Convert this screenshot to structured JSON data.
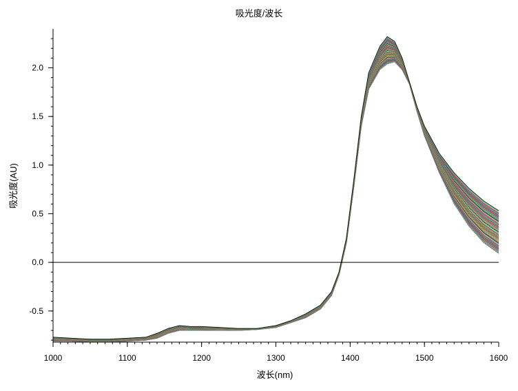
{
  "chart_data": {
    "type": "line",
    "title": "吸光度/波长",
    "xlabel": "波长(nm)",
    "ylabel": "吸光度(AU)",
    "xlim": [
      1000,
      1600
    ],
    "ylim": [
      -0.82,
      2.4
    ],
    "x_ticks": [
      1000,
      1100,
      1200,
      1300,
      1400,
      1500,
      1600
    ],
    "x_tick_labels": [
      "1000",
      "1100",
      "1200",
      "1300",
      "1400",
      "1500",
      "1600"
    ],
    "y_ticks": [
      2.0,
      1.5,
      1.0,
      0.5,
      0.0,
      -0.5
    ],
    "y_tick_labels": [
      "2.0",
      "1.5",
      "1.0",
      "0.5",
      "0.0",
      "-0.5"
    ],
    "grid": false,
    "legend": "none",
    "reference_line": {
      "y": 0.0,
      "color": "#000000"
    },
    "x": [
      1000,
      1025,
      1050,
      1075,
      1100,
      1125,
      1140,
      1155,
      1170,
      1185,
      1200,
      1225,
      1250,
      1275,
      1300,
      1320,
      1340,
      1360,
      1375,
      1385,
      1395,
      1405,
      1415,
      1425,
      1440,
      1450,
      1460,
      1470,
      1480,
      1490,
      1500,
      1520,
      1540,
      1560,
      1580,
      1600
    ],
    "envelope": {
      "upper": [
        -0.77,
        -0.78,
        -0.79,
        -0.79,
        -0.78,
        -0.77,
        -0.73,
        -0.68,
        -0.65,
        -0.66,
        -0.66,
        -0.67,
        -0.68,
        -0.68,
        -0.65,
        -0.6,
        -0.53,
        -0.44,
        -0.3,
        -0.1,
        0.25,
        0.85,
        1.5,
        1.95,
        2.22,
        2.32,
        2.27,
        2.1,
        1.85,
        1.6,
        1.4,
        1.12,
        0.92,
        0.76,
        0.63,
        0.53
      ],
      "lower": [
        -0.81,
        -0.81,
        -0.82,
        -0.82,
        -0.81,
        -0.8,
        -0.78,
        -0.73,
        -0.7,
        -0.7,
        -0.7,
        -0.7,
        -0.7,
        -0.69,
        -0.67,
        -0.62,
        -0.57,
        -0.48,
        -0.34,
        -0.13,
        0.2,
        0.78,
        1.4,
        1.78,
        1.98,
        2.04,
        2.06,
        1.98,
        1.83,
        1.55,
        1.3,
        0.92,
        0.6,
        0.37,
        0.2,
        0.09
      ]
    },
    "series_count": 80,
    "series_palette": [
      "#e53935",
      "#1e88e5",
      "#43a047",
      "#fdd835",
      "#8e24aa",
      "#00acc1",
      "#fb8c00",
      "#6d4c41",
      "#d81b60",
      "#7cb342",
      "#3949ab",
      "#00897b",
      "#c0ca33",
      "#5e35b1",
      "#f4511e",
      "#546e7a",
      "#ff4081",
      "#18ffff",
      "#76ff03",
      "#000000"
    ]
  }
}
